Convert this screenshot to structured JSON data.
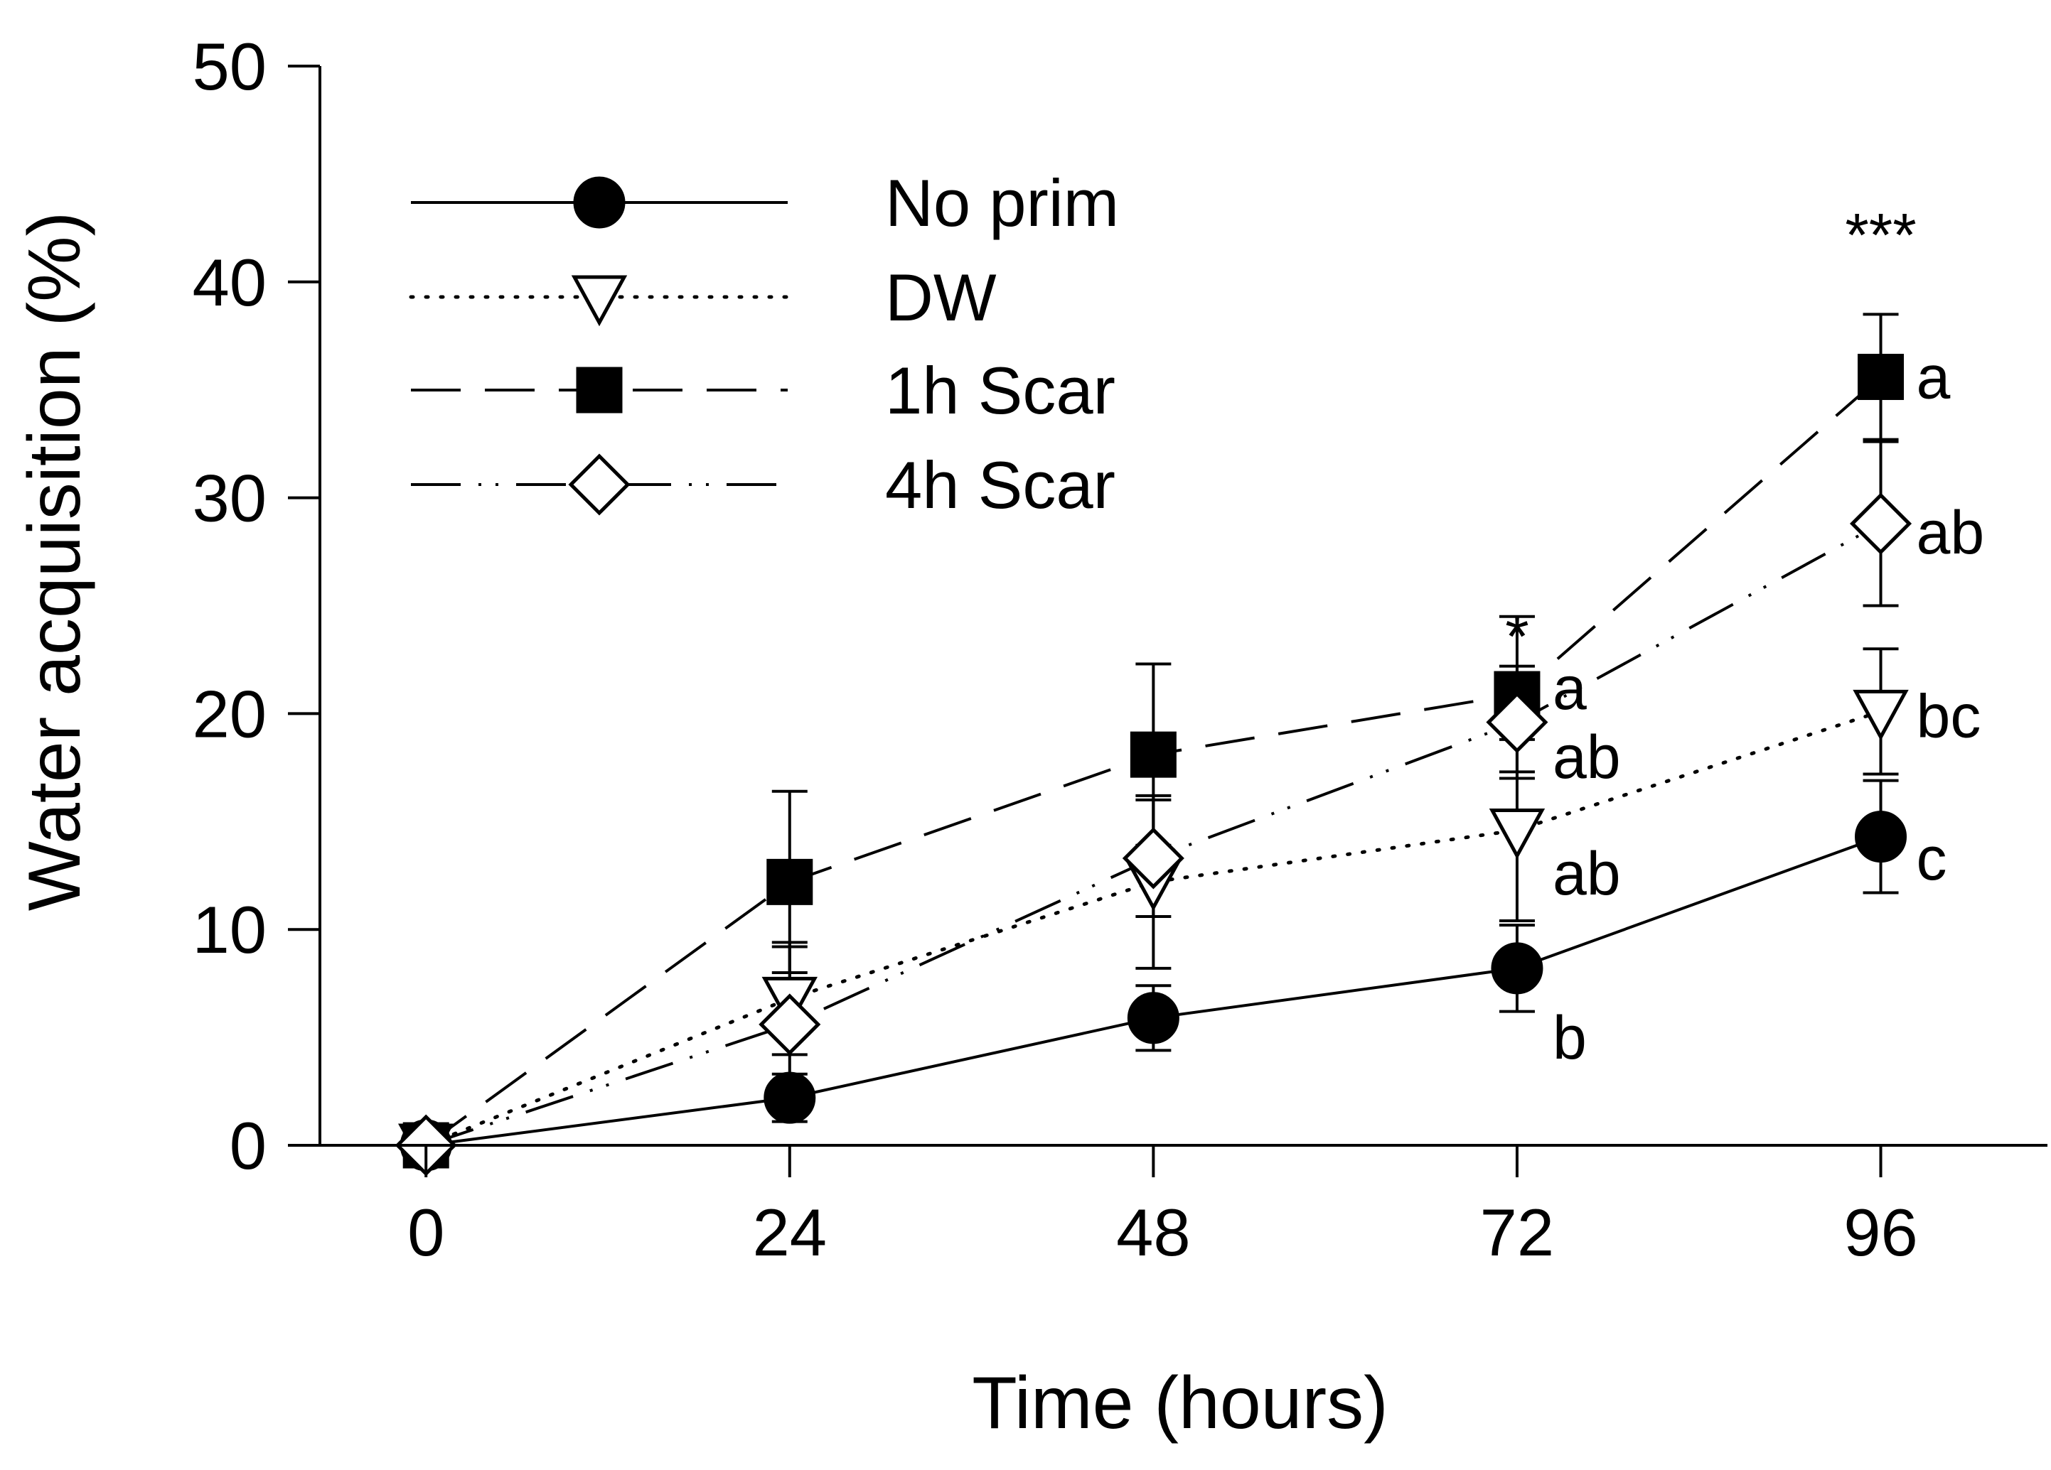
{
  "chart_data": {
    "type": "line",
    "title": "",
    "xlabel": "Time (hours)",
    "ylabel": "Water acquisition (%)",
    "x": [
      0,
      24,
      48,
      72,
      96
    ],
    "xticks": [
      "0",
      "24",
      "48",
      "72",
      "96"
    ],
    "xlim": [
      -7,
      107
    ],
    "yticks": [
      "0",
      "10",
      "20",
      "30",
      "40",
      "50"
    ],
    "ylim": [
      0,
      50
    ],
    "legend_position": "top-left",
    "series": [
      {
        "name": "No prim",
        "line_style": "solid",
        "marker": "circle-filled",
        "values": [
          0,
          2.2,
          5.9,
          8.2,
          14.3
        ],
        "errors": [
          0,
          1.1,
          1.5,
          2.0,
          2.6
        ]
      },
      {
        "name": "DW",
        "line_style": "dotted",
        "marker": "triangle-down-open",
        "values": [
          0,
          6.8,
          12.2,
          14.6,
          20.1
        ],
        "errors": [
          0,
          2.6,
          4.0,
          4.2,
          2.9
        ]
      },
      {
        "name": "1h Scar",
        "line_style": "dashed",
        "marker": "square-filled",
        "values": [
          0,
          12.2,
          18.1,
          20.9,
          35.6
        ],
        "errors": [
          0,
          4.2,
          4.2,
          3.6,
          2.9
        ]
      },
      {
        "name": "4h Scar",
        "line_style": "dash-dot-dot",
        "marker": "diamond-open",
        "values": [
          0,
          5.6,
          13.3,
          19.6,
          28.8
        ],
        "errors": [
          0,
          3.6,
          2.7,
          2.6,
          3.8
        ]
      }
    ],
    "annotations": [
      {
        "x": 72,
        "y": 22.6,
        "text": "*",
        "anchor": "middle",
        "dy": 1.5
      },
      {
        "x": 96,
        "y": 41.2,
        "text": "***",
        "anchor": "middle",
        "dy": 0
      },
      {
        "x": 72,
        "y": 21.2,
        "text": "a",
        "anchor": "start",
        "dy": 0
      },
      {
        "x": 72,
        "y": 18.0,
        "text": "ab",
        "anchor": "start",
        "dy": 0
      },
      {
        "x": 72,
        "y": 12.6,
        "text": "ab",
        "anchor": "start",
        "dy": 0
      },
      {
        "x": 72,
        "y": 5.0,
        "text": "b",
        "anchor": "start",
        "dy": 0
      },
      {
        "x": 96,
        "y": 35.6,
        "text": "a",
        "anchor": "start",
        "dy": 0
      },
      {
        "x": 96,
        "y": 28.4,
        "text": "ab",
        "anchor": "start",
        "dy": 0
      },
      {
        "x": 96,
        "y": 19.9,
        "text": "bc",
        "anchor": "start",
        "dy": 0
      },
      {
        "x": 96,
        "y": 13.3,
        "text": "c",
        "anchor": "start",
        "dy": 0
      }
    ]
  }
}
